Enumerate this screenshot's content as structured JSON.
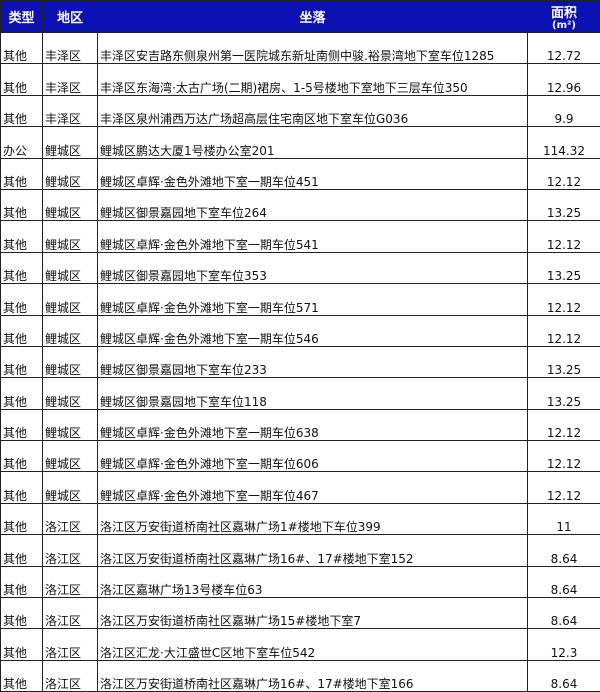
{
  "headers": {
    "type": "类型",
    "region": "地区",
    "location": "坐落",
    "area": "面积",
    "area_unit": "(m²)"
  },
  "rows": [
    {
      "type": "其他",
      "region": "丰泽区",
      "location": "丰泽区安吉路东侧泉州第一医院城东新址南侧中骏.裕景湾地下室车位1285",
      "area": "12.72"
    },
    {
      "type": "其他",
      "region": "丰泽区",
      "location": "丰泽区东海湾·太古广场(二期)裙房、1-5号楼地下室地下三层车位350",
      "area": "12.96"
    },
    {
      "type": "其他",
      "region": "丰泽区",
      "location": "丰泽区泉州浦西万达广场超高层住宅南区地下室车位G036",
      "area": "9.9"
    },
    {
      "type": "办公",
      "region": "鲤城区",
      "location": "鲤城区鹏达大厦1号楼办公室201",
      "area": "114.32"
    },
    {
      "type": "其他",
      "region": "鲤城区",
      "location": "鲤城区卓辉·金色外滩地下室一期车位451",
      "area": "12.12"
    },
    {
      "type": "其他",
      "region": "鲤城区",
      "location": "鲤城区御景嘉园地下室车位264",
      "area": "13.25"
    },
    {
      "type": "其他",
      "region": "鲤城区",
      "location": "鲤城区卓辉·金色外滩地下室一期车位541",
      "area": "12.12"
    },
    {
      "type": "其他",
      "region": "鲤城区",
      "location": "鲤城区御景嘉园地下室车位353",
      "area": "13.25"
    },
    {
      "type": "其他",
      "region": "鲤城区",
      "location": "鲤城区卓辉·金色外滩地下室一期车位571",
      "area": "12.12"
    },
    {
      "type": "其他",
      "region": "鲤城区",
      "location": "鲤城区卓辉·金色外滩地下室一期车位546",
      "area": "12.12"
    },
    {
      "type": "其他",
      "region": "鲤城区",
      "location": "鲤城区御景嘉园地下室车位233",
      "area": "13.25"
    },
    {
      "type": "其他",
      "region": "鲤城区",
      "location": "鲤城区御景嘉园地下室车位118",
      "area": "13.25"
    },
    {
      "type": "其他",
      "region": "鲤城区",
      "location": "鲤城区卓辉·金色外滩地下室一期车位638",
      "area": "12.12"
    },
    {
      "type": "其他",
      "region": "鲤城区",
      "location": "鲤城区卓辉·金色外滩地下室一期车位606",
      "area": "12.12"
    },
    {
      "type": "其他",
      "region": "鲤城区",
      "location": "鲤城区卓辉·金色外滩地下室一期车位467",
      "area": "12.12"
    },
    {
      "type": "其他",
      "region": "洛江区",
      "location": "洛江区万安街道桥南社区嘉琳广场1#楼地下车位399",
      "area": "11"
    },
    {
      "type": "其他",
      "region": "洛江区",
      "location": "洛江区万安街道桥南社区嘉琳广场16#、17#楼地下室152",
      "area": "8.64"
    },
    {
      "type": "其他",
      "region": "洛江区",
      "location": "洛江区嘉琳广场13号楼车位63",
      "area": "8.64"
    },
    {
      "type": "其他",
      "region": "洛江区",
      "location": "洛江区万安街道桥南社区嘉琳广场15#楼地下室7",
      "area": "8.64"
    },
    {
      "type": "其他",
      "region": "洛江区",
      "location": "洛江区汇龙·大江盛世C区地下室车位542",
      "area": "12.3"
    },
    {
      "type": "其他",
      "region": "洛江区",
      "location": "洛江区万安街道桥南社区嘉琳广场16#、17#楼地下室166",
      "area": "8.64"
    }
  ]
}
